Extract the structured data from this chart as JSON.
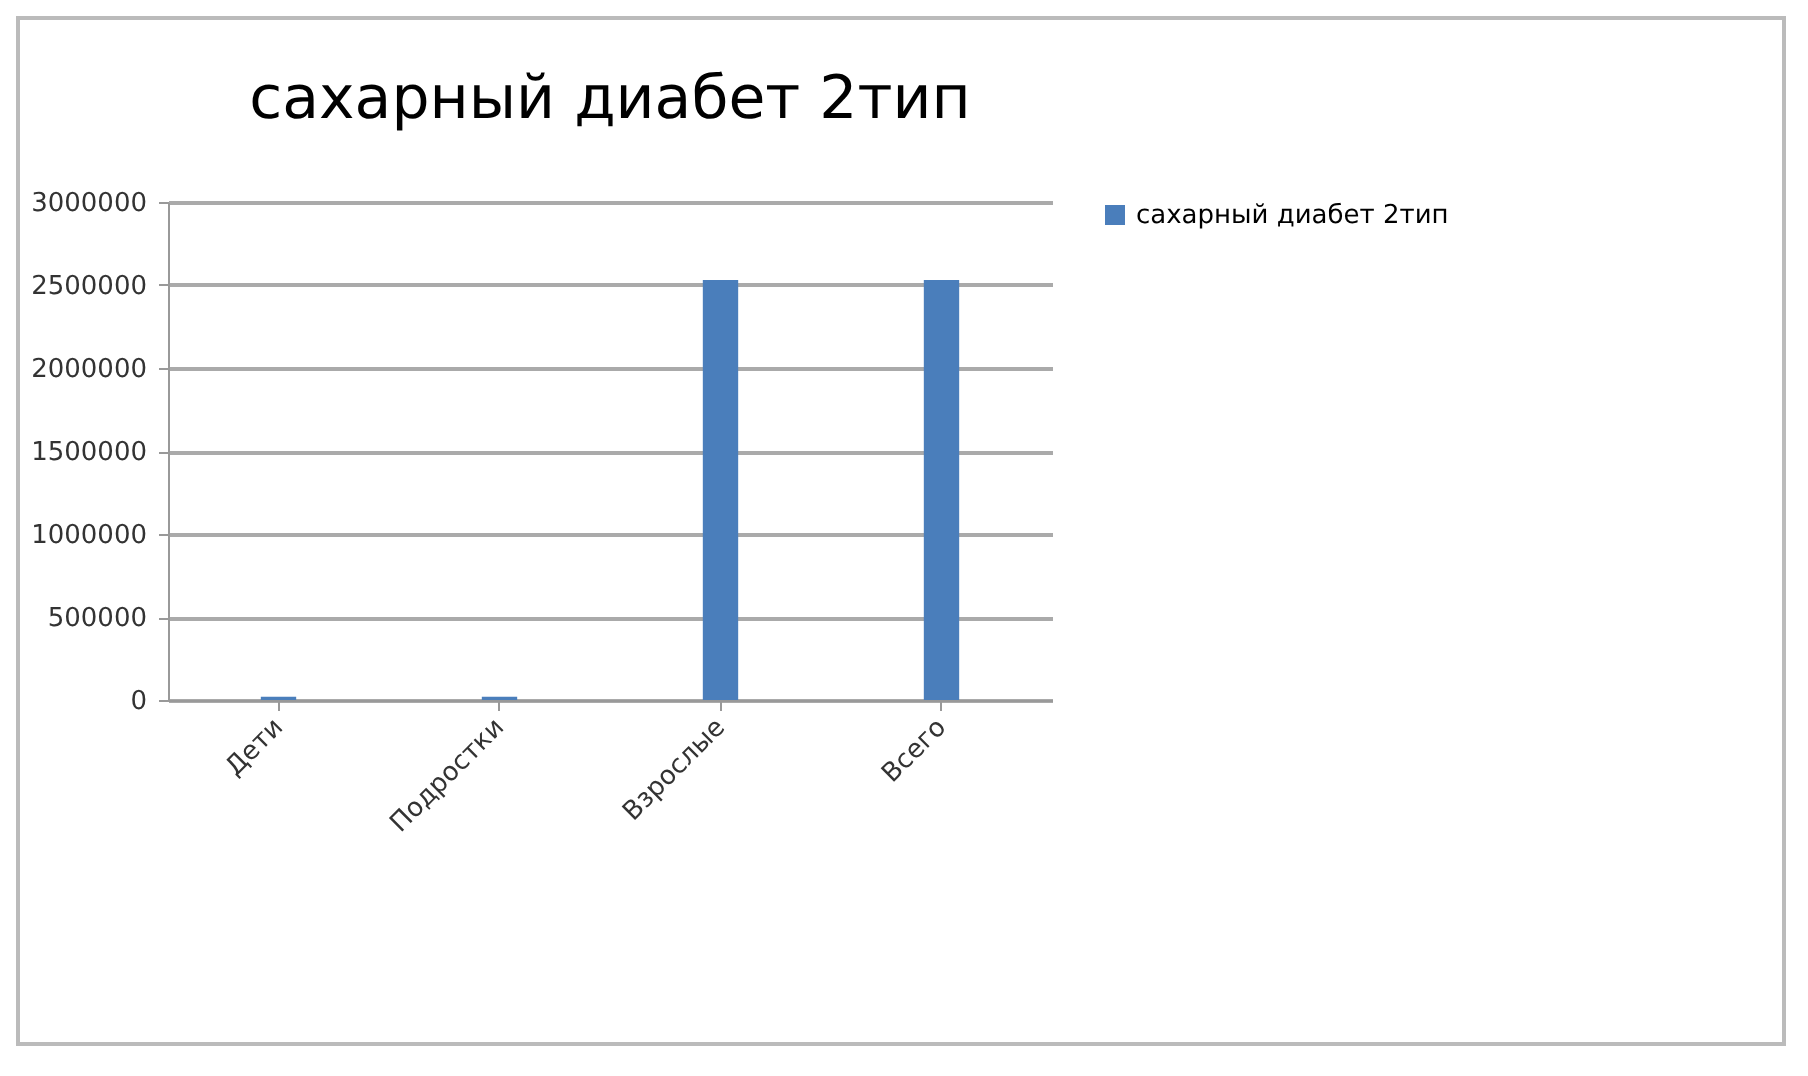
{
  "chart_data": {
    "type": "bar",
    "title": "сахарный диабет 2тип",
    "categories": [
      "Дети",
      "Подростки",
      "Взрослые",
      "Всего"
    ],
    "series": [
      {
        "name": "сахарный диабет 2тип",
        "color": "#4a7ebb",
        "values": [
          20000,
          20000,
          2530000,
          2530000
        ]
      }
    ],
    "ylim": [
      0,
      3000000
    ],
    "yticks": [
      0,
      500000,
      1000000,
      1500000,
      2000000,
      2500000,
      3000000
    ],
    "grid": "y",
    "legend": "right"
  }
}
